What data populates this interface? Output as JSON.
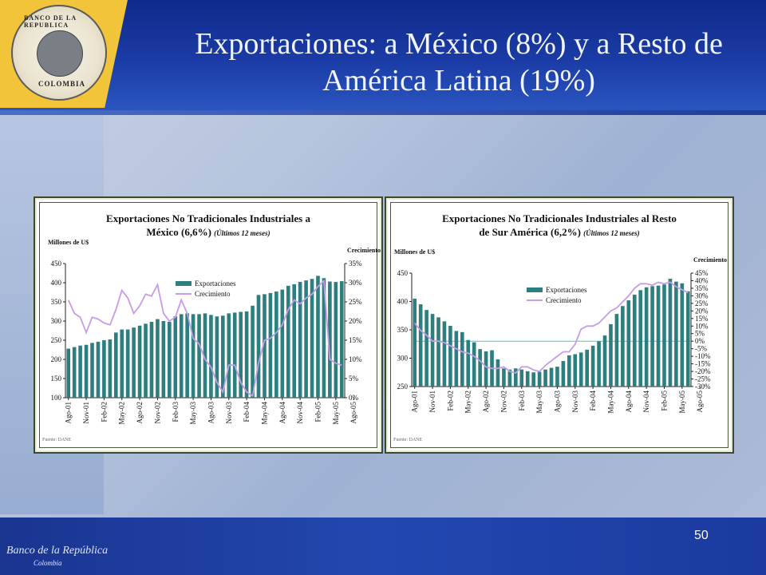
{
  "slide": {
    "title": "Exportaciones: a México (8%) y a Resto de América Latina (19%)",
    "page_number": "50",
    "footer_logo_text": "Banco de la República",
    "footer_logo_subtext": "Colombia",
    "seal_text_top": "BANCO DE LA REPUBLICA",
    "seal_text_bottom": "COLOMBIA"
  },
  "colors": {
    "bar": "#2d7f7f",
    "line": "#c69be8",
    "hline": "#3ad0d0",
    "title_bar": "#1b3ca6",
    "logo": "#f2c43a"
  },
  "chart_data": [
    {
      "type": "bar",
      "title": "Exportaciones No Tradicionales Industriales a México (6,6%) (Últimos 12 meses)",
      "title_line1": "Exportaciones No Tradicionales Industriales a",
      "title_line2": "México (6,6%) ",
      "title_suffix": "(Últimos 12 meses)",
      "ylabel": "Millones de U$",
      "y2label": "Crecimiento",
      "source": "Fuente: DANE",
      "ylim": [
        100,
        450
      ],
      "y2lim": [
        0,
        35
      ],
      "yticks": [
        "450",
        "400",
        "350",
        "300",
        "250",
        "200",
        "150",
        "100"
      ],
      "y2ticks": [
        "35%",
        "30%",
        "25%",
        "20%",
        "15%",
        "10%",
        "5%",
        "0%"
      ],
      "xticks": [
        "Ago-01",
        "Nov-01",
        "Feb-02",
        "May-02",
        "Ago-02",
        "Nov-02",
        "Feb-03",
        "May-03",
        "Ago-03",
        "Nov-03",
        "Feb-04",
        "May-04",
        "Ago-04",
        "Nov-04",
        "Feb-05",
        "May-05",
        "Ago-05"
      ],
      "series": [
        {
          "name": "Exportaciones",
          "axis": "left",
          "values": [
            228,
            232,
            236,
            238,
            243,
            246,
            250,
            252,
            270,
            278,
            278,
            283,
            288,
            293,
            298,
            305,
            300,
            298,
            312,
            318,
            320,
            318,
            318,
            320,
            316,
            312,
            314,
            320,
            322,
            324,
            325,
            340,
            368,
            370,
            373,
            377,
            382,
            392,
            396,
            402,
            406,
            410,
            418,
            412,
            403,
            402,
            404
          ]
        },
        {
          "name": "Crecimiento",
          "axis": "right",
          "values": [
            25.5,
            22,
            21,
            17,
            21,
            20.5,
            19.5,
            19,
            23,
            28,
            26,
            22,
            24,
            27,
            26.5,
            29.5,
            22,
            20,
            21,
            25.5,
            22,
            15.5,
            14,
            10,
            8,
            4,
            1.5,
            8.5,
            8.5,
            4,
            1.5,
            0.5,
            9,
            15,
            15.5,
            17,
            19,
            23,
            25.5,
            24.5,
            26,
            27,
            29,
            30.5,
            10,
            9,
            8.5
          ]
        }
      ],
      "legend": "center-right"
    },
    {
      "type": "bar",
      "title": "Exportaciones No Tradicionales Industriales al Resto de Sur América (6,2%) (Últimos 12 meses)",
      "title_line1": "Exportaciones No Tradicionales Industriales al Resto",
      "title_line2": "de Sur América (6,2%) ",
      "title_suffix": "(Últimos 12 meses)",
      "ylabel": "Millones de U$",
      "y2label": "Crecimiento",
      "source": "Fuente: DANE",
      "ylim": [
        250,
        450
      ],
      "y2lim": [
        -30,
        45
      ],
      "yticks": [
        "450",
        "400",
        "350",
        "300",
        "250"
      ],
      "y2ticks": [
        "45%",
        "40%",
        "35%",
        "30%",
        "25%",
        "20%",
        "15%",
        "10%",
        "5%",
        "0%",
        "-5%",
        "-10%",
        "-15%",
        "-20%",
        "-25%",
        "-30%"
      ],
      "xticks": [
        "Ago-01",
        "Nov-01",
        "Feb-02",
        "May-02",
        "Ago-02",
        "Nov-02",
        "Feb-03",
        "May-03",
        "Ago-03",
        "Nov-03",
        "Feb-04",
        "May-04",
        "Ago-04",
        "Nov-04",
        "Feb-05",
        "May-05",
        "Ago-05"
      ],
      "series": [
        {
          "name": "Exportaciones",
          "axis": "left",
          "values": [
            405,
            395,
            385,
            378,
            372,
            365,
            357,
            348,
            346,
            332,
            328,
            316,
            312,
            314,
            298,
            282,
            280,
            282,
            280,
            277,
            275,
            276,
            280,
            283,
            285,
            295,
            305,
            307,
            310,
            315,
            322,
            330,
            340,
            360,
            378,
            392,
            402,
            412,
            420,
            425,
            427,
            428,
            430,
            440,
            435,
            432,
            418
          ]
        },
        {
          "name": "Crecimiento",
          "axis": "right",
          "values": [
            12,
            7,
            4,
            0,
            0,
            -1,
            -3,
            -5,
            -7,
            -8,
            -10,
            -13,
            -17,
            -18,
            -18,
            -17,
            -20,
            -21,
            -17,
            -17,
            -19,
            -20,
            -16,
            -13,
            -10,
            -7,
            -7,
            -2,
            8,
            10,
            10,
            12,
            16,
            20,
            22,
            26,
            30,
            35,
            38,
            38,
            37,
            39,
            38,
            39,
            36,
            34,
            32
          ]
        }
      ],
      "legend": "center-right"
    }
  ]
}
